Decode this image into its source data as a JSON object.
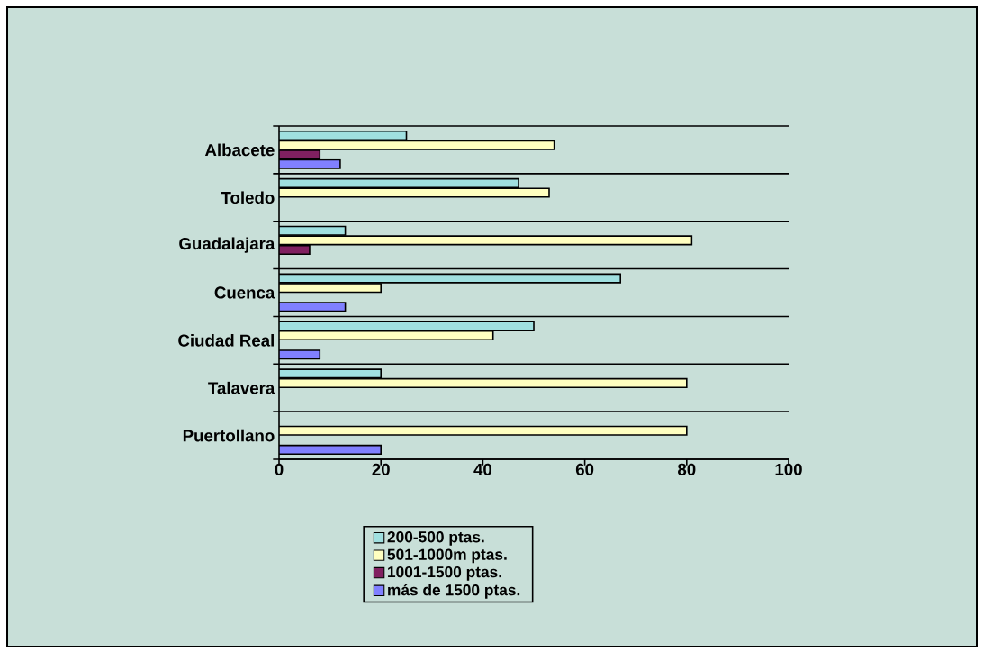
{
  "chart_data": {
    "type": "bar",
    "orientation": "horizontal",
    "categories": [
      "Albacete",
      "Toledo",
      "Guadalajara",
      "Cuenca",
      "Ciudad Real",
      "Talavera",
      "Puertollano"
    ],
    "series": [
      {
        "name": "200-500 ptas.",
        "color": "#a0e0e0",
        "values": [
          25,
          47,
          13,
          67,
          50,
          20,
          null
        ]
      },
      {
        "name": "501-1000m ptas.",
        "color": "#ffffc0",
        "values": [
          54,
          53,
          81,
          20,
          42,
          80,
          80
        ]
      },
      {
        "name": "1001-1500 ptas.",
        "color": "#802060",
        "values": [
          8,
          null,
          6,
          null,
          null,
          null,
          null
        ]
      },
      {
        "name": "más de 1500 ptas.",
        "color": "#8080ff",
        "values": [
          12,
          null,
          null,
          13,
          8,
          null,
          20
        ]
      }
    ],
    "xlim": [
      0,
      100
    ],
    "xticks": [
      0,
      20,
      40,
      60,
      80,
      100
    ],
    "grid": "y",
    "legend": "bottom"
  }
}
